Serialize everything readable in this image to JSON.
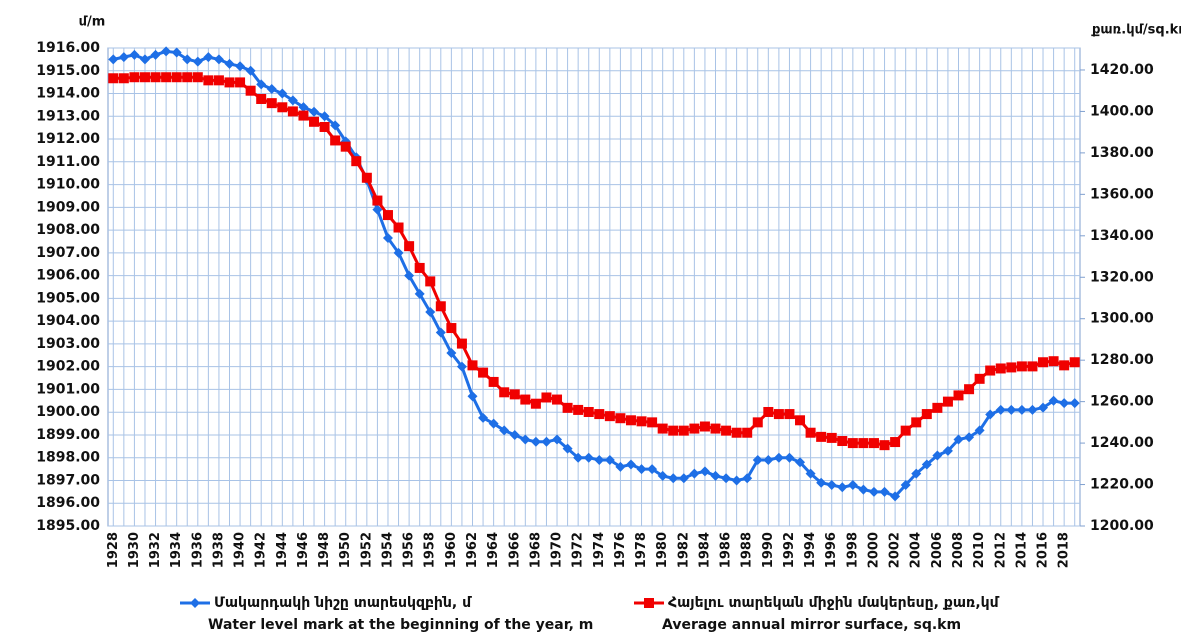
{
  "chart_data": {
    "type": "line",
    "y_label": "մ/m",
    "y2_label": "քառ.կմ/sq.km",
    "x": [
      1928,
      1929,
      1930,
      1931,
      1932,
      1933,
      1934,
      1935,
      1936,
      1937,
      1938,
      1939,
      1940,
      1941,
      1942,
      1943,
      1944,
      1945,
      1946,
      1947,
      1948,
      1949,
      1950,
      1951,
      1952,
      1953,
      1954,
      1955,
      1956,
      1957,
      1958,
      1959,
      1960,
      1961,
      1962,
      1963,
      1964,
      1965,
      1966,
      1967,
      1968,
      1969,
      1970,
      1971,
      1972,
      1973,
      1974,
      1975,
      1976,
      1977,
      1978,
      1979,
      1980,
      1981,
      1982,
      1983,
      1984,
      1985,
      1986,
      1987,
      1988,
      1989,
      1990,
      1991,
      1992,
      1993,
      1994,
      1995,
      1996,
      1997,
      1998,
      1999,
      2000,
      2001,
      2002,
      2003,
      2004,
      2005,
      2006,
      2007,
      2008,
      2009,
      2010,
      2011,
      2012,
      2013,
      2014,
      2015,
      2016,
      2017,
      2018,
      2019
    ],
    "xlim": [
      1927.5,
      2019.5
    ],
    "xticks": [
      1928,
      1930,
      1932,
      1934,
      1936,
      1938,
      1940,
      1942,
      1944,
      1946,
      1948,
      1950,
      1952,
      1954,
      1956,
      1958,
      1960,
      1962,
      1964,
      1966,
      1968,
      1970,
      1972,
      1974,
      1976,
      1978,
      1980,
      1982,
      1984,
      1986,
      1988,
      1990,
      1992,
      1994,
      1996,
      1998,
      2000,
      2002,
      2004,
      2006,
      2008,
      2010,
      2012,
      2014,
      2016,
      2018
    ],
    "ylim": [
      1895,
      1916
    ],
    "yticks": [
      {
        "value": 1895,
        "label": "1895.00"
      },
      {
        "value": 1896,
        "label": "1896.00"
      },
      {
        "value": 1897,
        "label": "1897.00"
      },
      {
        "value": 1898,
        "label": "1898.00"
      },
      {
        "value": 1899,
        "label": "1899.00"
      },
      {
        "value": 1900,
        "label": "1900.00"
      },
      {
        "value": 1901,
        "label": "1901.00"
      },
      {
        "value": 1902,
        "label": "1902.00"
      },
      {
        "value": 1903,
        "label": "1903.00"
      },
      {
        "value": 1904,
        "label": "1904.00"
      },
      {
        "value": 1905,
        "label": "1905.00"
      },
      {
        "value": 1906,
        "label": "1906.00"
      },
      {
        "value": 1907,
        "label": "1907.00"
      },
      {
        "value": 1908,
        "label": "1908.00"
      },
      {
        "value": 1909,
        "label": "1909.00"
      },
      {
        "value": 1910,
        "label": "1910.00"
      },
      {
        "value": 1911,
        "label": "1911.00"
      },
      {
        "value": 1912,
        "label": "1912.00"
      },
      {
        "value": 1913,
        "label": "1913.00"
      },
      {
        "value": 1914,
        "label": "1914.00"
      },
      {
        "value": 1915,
        "label": "1915.00"
      },
      {
        "value": 1916,
        "label": "1916.00"
      }
    ],
    "y2lim": [
      1200,
      1430.6
    ],
    "y2ticks": [
      {
        "value": 1200,
        "label": "1200.00"
      },
      {
        "value": 1220,
        "label": "1220.00"
      },
      {
        "value": 1240,
        "label": "1240.00"
      },
      {
        "value": 1260,
        "label": "1260.00"
      },
      {
        "value": 1280,
        "label": "1280.00"
      },
      {
        "value": 1300,
        "label": "1300.00"
      },
      {
        "value": 1320,
        "label": "1320.00"
      },
      {
        "value": 1340,
        "label": "1340.00"
      },
      {
        "value": 1360,
        "label": "1360.00"
      },
      {
        "value": 1380,
        "label": "1380.00"
      },
      {
        "value": 1400,
        "label": "1400.00"
      },
      {
        "value": 1420,
        "label": "1420.00"
      }
    ],
    "grid": true,
    "series": [
      {
        "name": "Մակարդակի նիշը տարեսկզբին, մ",
        "legend_note": "Water level mark at the beginning of the year, m",
        "color": "#1e6fe6",
        "marker": "diamond",
        "values": [
          1915.5,
          1915.6,
          1915.7,
          1915.5,
          1915.7,
          1915.85,
          1915.8,
          1915.5,
          1915.4,
          1915.6,
          1915.5,
          1915.3,
          1915.2,
          1915.0,
          1914.4,
          1914.2,
          1914.0,
          1913.7,
          1913.4,
          1913.2,
          1913.0,
          1912.6,
          1911.9,
          1911.2,
          1910.2,
          1908.9,
          1907.65,
          1907.0,
          1906.0,
          1905.2,
          1904.4,
          1903.5,
          1902.6,
          1902.0,
          1900.7,
          1899.75,
          1899.5,
          1899.2,
          1899.0,
          1898.8,
          1898.7,
          1898.7,
          1898.8,
          1898.4,
          1898.0,
          1898.0,
          1897.9,
          1897.9,
          1897.6,
          1897.7,
          1897.5,
          1897.5,
          1897.2,
          1897.1,
          1897.1,
          1897.3,
          1897.4,
          1897.2,
          1897.1,
          1897.0,
          1897.1,
          1897.9,
          1897.9,
          1898.0,
          1898.0,
          1897.8,
          1897.3,
          1896.9,
          1896.8,
          1896.7,
          1896.8,
          1896.6,
          1896.5,
          1896.5,
          1896.3,
          1896.8,
          1897.3,
          1897.7,
          1898.1,
          1898.3,
          1898.8,
          1898.9,
          1899.2,
          1899.9,
          1900.1,
          1900.1,
          1900.1,
          1900.1,
          1900.2,
          1900.5,
          1900.4,
          1900.4
        ]
      },
      {
        "name": "Հայելու տարեկան միջին մակերեսը, քառ,կմ",
        "legend_note": "Average annual mirror surface, sq.km",
        "color": "#f00000",
        "marker": "square",
        "axis": "y2",
        "values": [
          1416,
          1416,
          1416.5,
          1416.5,
          1416.5,
          1416.5,
          1416.5,
          1416.5,
          1416.5,
          1415,
          1415,
          1414,
          1414,
          1410,
          1406,
          1404,
          1402,
          1400,
          1398,
          1395,
          1392.5,
          1386,
          1383,
          1376,
          1368,
          1357,
          1350,
          1344,
          1335,
          1324.5,
          1318,
          1306,
          1295.5,
          1288,
          1277.5,
          1274,
          1269.5,
          1264.5,
          1263.5,
          1261,
          1259,
          1262,
          1261,
          1257,
          1256,
          1255,
          1254,
          1253,
          1252,
          1251,
          1250.5,
          1250,
          1247,
          1246,
          1246,
          1247,
          1248,
          1247,
          1246,
          1245,
          1245,
          1250,
          1255,
          1254,
          1254,
          1251,
          1245,
          1243,
          1242.5,
          1241,
          1240,
          1240,
          1240,
          1239,
          1240.5,
          1246,
          1250,
          1254,
          1257,
          1260,
          1263,
          1266,
          1271,
          1275,
          1276,
          1276.5,
          1277,
          1277,
          1279,
          1279.5,
          1277.5,
          1279
        ]
      }
    ]
  }
}
